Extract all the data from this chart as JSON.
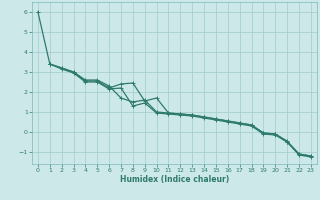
{
  "xlabel": "Humidex (Indice chaleur)",
  "bg_color": "#cde8e8",
  "grid_color": "#a8cfcf",
  "line_color": "#2e7b6e",
  "spine_color": "#7ab8b8",
  "xlim": [
    -0.5,
    23.5
  ],
  "ylim": [
    -1.6,
    6.5
  ],
  "xticks": [
    0,
    1,
    2,
    3,
    4,
    5,
    6,
    7,
    8,
    9,
    10,
    11,
    12,
    13,
    14,
    15,
    16,
    17,
    18,
    19,
    20,
    21,
    22,
    23
  ],
  "yticks": [
    -1,
    0,
    1,
    2,
    3,
    4,
    5,
    6
  ],
  "line1_x": [
    0,
    1,
    2,
    3,
    4,
    5,
    6,
    7,
    8,
    9,
    10,
    11,
    12,
    13,
    14,
    15,
    16,
    17,
    18,
    19,
    20,
    21,
    22,
    23
  ],
  "line1_y": [
    6.0,
    3.4,
    3.2,
    3.0,
    2.6,
    2.6,
    2.3,
    1.7,
    1.5,
    1.6,
    1.0,
    0.95,
    0.9,
    0.85,
    0.75,
    0.65,
    0.55,
    0.45,
    0.35,
    -0.05,
    -0.1,
    -0.5,
    -1.1,
    -1.2
  ],
  "line2_x": [
    1,
    2,
    3,
    4,
    5,
    6,
    7,
    8,
    9,
    10,
    11,
    12,
    13,
    14,
    15,
    16,
    17,
    18,
    19,
    20,
    21,
    22,
    23
  ],
  "line2_y": [
    3.4,
    3.2,
    3.0,
    2.55,
    2.55,
    2.2,
    2.4,
    2.45,
    1.55,
    1.7,
    0.95,
    0.9,
    0.85,
    0.75,
    0.65,
    0.55,
    0.45,
    0.35,
    -0.05,
    -0.1,
    -0.45,
    -1.1,
    -1.2
  ],
  "line3_x": [
    1,
    2,
    3,
    4,
    5,
    6,
    7,
    8,
    9,
    10,
    11,
    12,
    13,
    14,
    15,
    16,
    17,
    18,
    19,
    20,
    21,
    22,
    23
  ],
  "line3_y": [
    3.4,
    3.15,
    2.95,
    2.5,
    2.5,
    2.15,
    2.2,
    1.3,
    1.45,
    0.95,
    0.9,
    0.85,
    0.8,
    0.7,
    0.6,
    0.5,
    0.4,
    0.3,
    -0.1,
    -0.15,
    -0.5,
    -1.15,
    -1.25
  ]
}
